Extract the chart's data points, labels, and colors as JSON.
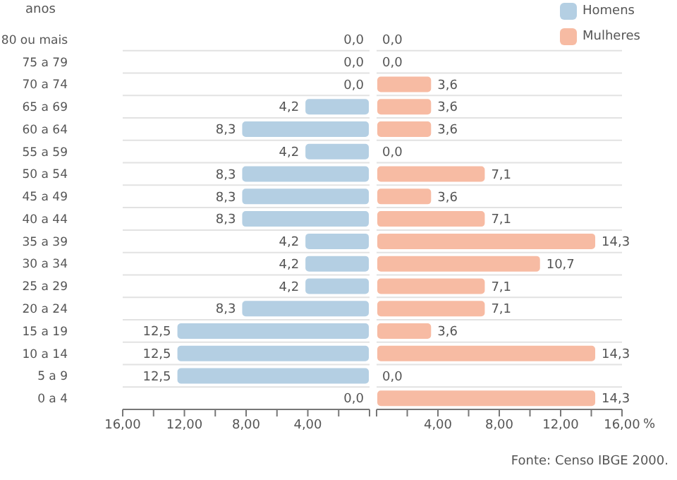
{
  "chart_data": [
    {
      "type": "bar",
      "orientation": "horizontal",
      "ylabel": "anos",
      "categories": [
        "80 ou mais",
        "75 a 79",
        "70 a 74",
        "65 a 69",
        "60 a 64",
        "55 a 59",
        "50 a 54",
        "45 a 49",
        "40 a 44",
        "35 a 39",
        "30 a 34",
        "25 a 29",
        "20 a 24",
        "15 a 19",
        "10 a 14",
        "5 a 9",
        "0 a 4"
      ],
      "series": [
        {
          "name": "Homens",
          "color": "#b4cfe3",
          "values": [
            0,
            0,
            0,
            4.2,
            8.3,
            4.2,
            8.3,
            8.3,
            8.3,
            4.2,
            4.2,
            4.2,
            8.3,
            12.5,
            12.5,
            12.5,
            0
          ],
          "value_labels": [
            "0,0",
            "0,0",
            "0,0",
            "4,2",
            "8,3",
            "4,2",
            "8,3",
            "8,3",
            "8,3",
            "4,2",
            "4,2",
            "4,2",
            "8,3",
            "12,5",
            "12,5",
            "12,5",
            "0,0"
          ]
        }
      ],
      "xlim": [
        16,
        0
      ],
      "xticks": [
        {
          "value": 16,
          "label": "16,00"
        },
        {
          "value": 14,
          "label": null
        },
        {
          "value": 12,
          "label": "12,00"
        },
        {
          "value": 10,
          "label": null
        },
        {
          "value": 8,
          "label": "8,00"
        },
        {
          "value": 6,
          "label": null
        },
        {
          "value": 4,
          "label": "4,00"
        },
        {
          "value": 2,
          "label": null
        },
        {
          "value": 0,
          "label": null
        }
      ],
      "grid": "y",
      "legend": "top right"
    },
    {
      "type": "bar",
      "orientation": "horizontal",
      "xlabel": "%",
      "categories": [
        null,
        null,
        null,
        null,
        null,
        null,
        null,
        null,
        null,
        null,
        null,
        null,
        null,
        null,
        null,
        null,
        null
      ],
      "series": [
        {
          "name": "Mulheres",
          "color": "#f7bba3",
          "values": [
            0,
            0,
            3.6,
            3.6,
            3.6,
            0,
            7.1,
            3.6,
            7.1,
            14.3,
            10.7,
            7.1,
            7.1,
            3.6,
            14.3,
            0,
            14.3
          ],
          "value_labels": [
            "0,0",
            "0,0",
            "3,6",
            "3,6",
            "3,6",
            "0,0",
            "7,1",
            "3,6",
            "7,1",
            "14,3",
            "10,7",
            "7,1",
            "7,1",
            "3,6",
            "14,3",
            "0,0",
            "14,3"
          ]
        }
      ],
      "xlim": [
        0,
        16
      ],
      "xticks": [
        {
          "value": 0,
          "label": null
        },
        {
          "value": 2,
          "label": null
        },
        {
          "value": 4,
          "label": "4,00"
        },
        {
          "value": 6,
          "label": null
        },
        {
          "value": 8,
          "label": "8,00"
        },
        {
          "value": 10,
          "label": null
        },
        {
          "value": 12,
          "label": "12,00"
        },
        {
          "value": 14,
          "label": null
        },
        {
          "value": 16,
          "label": "16,00"
        }
      ],
      "tick_labels": "x",
      "grid": "y",
      "legend": "top right",
      "annotations": [
        "Fonte: Censo IBGE 2000."
      ]
    }
  ]
}
